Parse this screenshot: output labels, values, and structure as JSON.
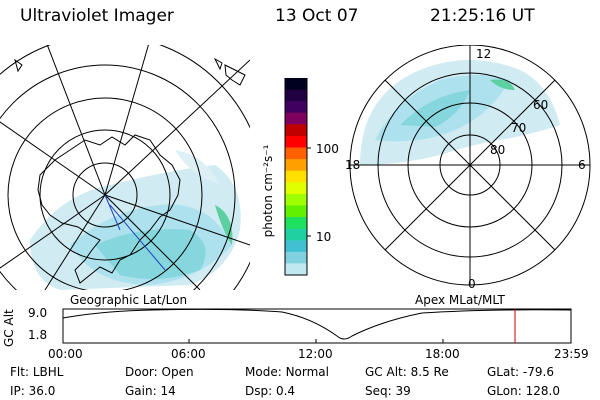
{
  "header": {
    "title": "Ultraviolet Imager",
    "date": "13 Oct 07",
    "time": "21:25:16 UT"
  },
  "colorbar": {
    "unit_label": "photon cm⁻²s⁻¹",
    "ticks": [
      "100",
      "10"
    ],
    "colors": [
      "#000020",
      "#200040",
      "#400060",
      "#800060",
      "#c00000",
      "#ff0000",
      "#ff6000",
      "#ffa000",
      "#ffe000",
      "#e0ff00",
      "#a0ff00",
      "#60f000",
      "#20e060",
      "#20d0a0",
      "#40c0d0",
      "#80d0e0",
      "#c0e8f0"
    ]
  },
  "left_panel": {
    "label": "Geographic Lat/Lon"
  },
  "right_panel": {
    "label": "Apex MLat/MLT",
    "clock_labels": {
      "top": "12",
      "left": "18",
      "right": "6",
      "bottom": "0"
    },
    "lat_labels": [
      "60",
      "70",
      "80"
    ]
  },
  "timeline": {
    "ylabel": "GC Alt",
    "ytick_top": "9.0",
    "ytick_bottom": "1.8",
    "xticks": [
      "00:00",
      "06:00",
      "12:00",
      "18:00",
      "23:59"
    ],
    "marker_color": "#cc0000"
  },
  "info": {
    "row1": [
      {
        "label": "Flt:",
        "value": "LBHL"
      },
      {
        "label": "Door:",
        "value": "Open"
      },
      {
        "label": "Mode:",
        "value": "Normal"
      },
      {
        "label": "GC Alt:",
        "value": "8.5 Re"
      },
      {
        "label": "GLat:",
        "value": "-79.6"
      }
    ],
    "row2": [
      {
        "label": "IP:",
        "value": "36.0"
      },
      {
        "label": "Gain:",
        "value": "14"
      },
      {
        "label": "Dsp:",
        "value": "0.4"
      },
      {
        "label": "Seq:",
        "value": "39"
      },
      {
        "label": "GLon:",
        "value": "128.0"
      }
    ]
  }
}
